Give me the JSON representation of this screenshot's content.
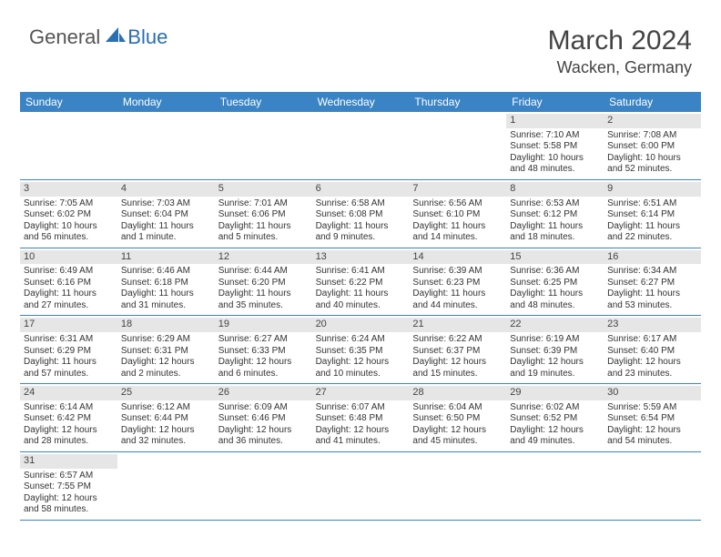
{
  "logo": {
    "general": "General",
    "blue": "Blue"
  },
  "title": "March 2024",
  "location": "Wacken, Germany",
  "colors": {
    "header_bg": "#3a84c5",
    "daynum_bg": "#e6e6e6",
    "row_border": "#3a84c5",
    "text": "#333333",
    "logo_blue": "#2a6fb0"
  },
  "day_headers": [
    "Sunday",
    "Monday",
    "Tuesday",
    "Wednesday",
    "Thursday",
    "Friday",
    "Saturday"
  ],
  "weeks": [
    [
      {
        "empty": true
      },
      {
        "empty": true
      },
      {
        "empty": true
      },
      {
        "empty": true
      },
      {
        "empty": true
      },
      {
        "n": "1",
        "sr": "Sunrise: 7:10 AM",
        "ss": "Sunset: 5:58 PM",
        "dl": "Daylight: 10 hours and 48 minutes."
      },
      {
        "n": "2",
        "sr": "Sunrise: 7:08 AM",
        "ss": "Sunset: 6:00 PM",
        "dl": "Daylight: 10 hours and 52 minutes."
      }
    ],
    [
      {
        "n": "3",
        "sr": "Sunrise: 7:05 AM",
        "ss": "Sunset: 6:02 PM",
        "dl": "Daylight: 10 hours and 56 minutes."
      },
      {
        "n": "4",
        "sr": "Sunrise: 7:03 AM",
        "ss": "Sunset: 6:04 PM",
        "dl": "Daylight: 11 hours and 1 minute."
      },
      {
        "n": "5",
        "sr": "Sunrise: 7:01 AM",
        "ss": "Sunset: 6:06 PM",
        "dl": "Daylight: 11 hours and 5 minutes."
      },
      {
        "n": "6",
        "sr": "Sunrise: 6:58 AM",
        "ss": "Sunset: 6:08 PM",
        "dl": "Daylight: 11 hours and 9 minutes."
      },
      {
        "n": "7",
        "sr": "Sunrise: 6:56 AM",
        "ss": "Sunset: 6:10 PM",
        "dl": "Daylight: 11 hours and 14 minutes."
      },
      {
        "n": "8",
        "sr": "Sunrise: 6:53 AM",
        "ss": "Sunset: 6:12 PM",
        "dl": "Daylight: 11 hours and 18 minutes."
      },
      {
        "n": "9",
        "sr": "Sunrise: 6:51 AM",
        "ss": "Sunset: 6:14 PM",
        "dl": "Daylight: 11 hours and 22 minutes."
      }
    ],
    [
      {
        "n": "10",
        "sr": "Sunrise: 6:49 AM",
        "ss": "Sunset: 6:16 PM",
        "dl": "Daylight: 11 hours and 27 minutes."
      },
      {
        "n": "11",
        "sr": "Sunrise: 6:46 AM",
        "ss": "Sunset: 6:18 PM",
        "dl": "Daylight: 11 hours and 31 minutes."
      },
      {
        "n": "12",
        "sr": "Sunrise: 6:44 AM",
        "ss": "Sunset: 6:20 PM",
        "dl": "Daylight: 11 hours and 35 minutes."
      },
      {
        "n": "13",
        "sr": "Sunrise: 6:41 AM",
        "ss": "Sunset: 6:22 PM",
        "dl": "Daylight: 11 hours and 40 minutes."
      },
      {
        "n": "14",
        "sr": "Sunrise: 6:39 AM",
        "ss": "Sunset: 6:23 PM",
        "dl": "Daylight: 11 hours and 44 minutes."
      },
      {
        "n": "15",
        "sr": "Sunrise: 6:36 AM",
        "ss": "Sunset: 6:25 PM",
        "dl": "Daylight: 11 hours and 48 minutes."
      },
      {
        "n": "16",
        "sr": "Sunrise: 6:34 AM",
        "ss": "Sunset: 6:27 PM",
        "dl": "Daylight: 11 hours and 53 minutes."
      }
    ],
    [
      {
        "n": "17",
        "sr": "Sunrise: 6:31 AM",
        "ss": "Sunset: 6:29 PM",
        "dl": "Daylight: 11 hours and 57 minutes."
      },
      {
        "n": "18",
        "sr": "Sunrise: 6:29 AM",
        "ss": "Sunset: 6:31 PM",
        "dl": "Daylight: 12 hours and 2 minutes."
      },
      {
        "n": "19",
        "sr": "Sunrise: 6:27 AM",
        "ss": "Sunset: 6:33 PM",
        "dl": "Daylight: 12 hours and 6 minutes."
      },
      {
        "n": "20",
        "sr": "Sunrise: 6:24 AM",
        "ss": "Sunset: 6:35 PM",
        "dl": "Daylight: 12 hours and 10 minutes."
      },
      {
        "n": "21",
        "sr": "Sunrise: 6:22 AM",
        "ss": "Sunset: 6:37 PM",
        "dl": "Daylight: 12 hours and 15 minutes."
      },
      {
        "n": "22",
        "sr": "Sunrise: 6:19 AM",
        "ss": "Sunset: 6:39 PM",
        "dl": "Daylight: 12 hours and 19 minutes."
      },
      {
        "n": "23",
        "sr": "Sunrise: 6:17 AM",
        "ss": "Sunset: 6:40 PM",
        "dl": "Daylight: 12 hours and 23 minutes."
      }
    ],
    [
      {
        "n": "24",
        "sr": "Sunrise: 6:14 AM",
        "ss": "Sunset: 6:42 PM",
        "dl": "Daylight: 12 hours and 28 minutes."
      },
      {
        "n": "25",
        "sr": "Sunrise: 6:12 AM",
        "ss": "Sunset: 6:44 PM",
        "dl": "Daylight: 12 hours and 32 minutes."
      },
      {
        "n": "26",
        "sr": "Sunrise: 6:09 AM",
        "ss": "Sunset: 6:46 PM",
        "dl": "Daylight: 12 hours and 36 minutes."
      },
      {
        "n": "27",
        "sr": "Sunrise: 6:07 AM",
        "ss": "Sunset: 6:48 PM",
        "dl": "Daylight: 12 hours and 41 minutes."
      },
      {
        "n": "28",
        "sr": "Sunrise: 6:04 AM",
        "ss": "Sunset: 6:50 PM",
        "dl": "Daylight: 12 hours and 45 minutes."
      },
      {
        "n": "29",
        "sr": "Sunrise: 6:02 AM",
        "ss": "Sunset: 6:52 PM",
        "dl": "Daylight: 12 hours and 49 minutes."
      },
      {
        "n": "30",
        "sr": "Sunrise: 5:59 AM",
        "ss": "Sunset: 6:54 PM",
        "dl": "Daylight: 12 hours and 54 minutes."
      }
    ],
    [
      {
        "n": "31",
        "sr": "Sunrise: 6:57 AM",
        "ss": "Sunset: 7:55 PM",
        "dl": "Daylight: 12 hours and 58 minutes."
      },
      {
        "empty": true
      },
      {
        "empty": true
      },
      {
        "empty": true
      },
      {
        "empty": true
      },
      {
        "empty": true
      },
      {
        "empty": true
      }
    ]
  ]
}
